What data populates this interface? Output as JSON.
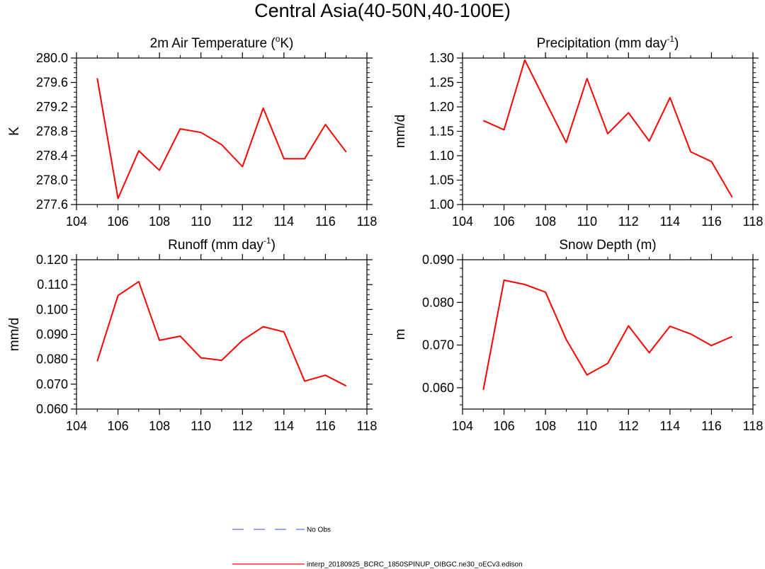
{
  "figure": {
    "title": "Central Asia(40-50N,40-100E)"
  },
  "chart_data": [
    {
      "type": "line",
      "title": "2m Air Temperature (",
      "title_sup": "o",
      "title_tail": "K)",
      "ylabel": "K",
      "xlim": [
        104,
        118
      ],
      "ylim": [
        277.6,
        280.0
      ],
      "xticks": [
        104,
        106,
        108,
        110,
        112,
        114,
        116,
        118
      ],
      "xtick_labels": [
        "104",
        "106",
        "108",
        "110",
        "112",
        "114",
        "116",
        "118"
      ],
      "yticks": [
        277.6,
        278.0,
        278.4,
        278.8,
        279.2,
        279.6,
        280.0
      ],
      "ytick_labels": [
        "277.6",
        "278.0",
        "278.4",
        "278.8",
        "279.2",
        "279.6",
        "280.0"
      ],
      "series": [
        {
          "name": "interp_20180925_BCRC_1850SPINUP_OIBGC.ne30_oECv3.edison",
          "color": "#ff0000",
          "x": [
            105,
            106,
            107,
            108,
            109,
            110,
            111,
            112,
            113,
            114,
            115,
            116,
            117
          ],
          "y": [
            279.67,
            277.7,
            278.48,
            278.16,
            278.84,
            278.78,
            278.58,
            278.22,
            279.18,
            278.35,
            278.35,
            278.91,
            278.46
          ]
        }
      ]
    },
    {
      "type": "line",
      "title": "Precipitation (mm day",
      "title_sup": "-1",
      "title_tail": ")",
      "ylabel": "mm/d",
      "xlim": [
        104,
        118
      ],
      "ylim": [
        1.0,
        1.3
      ],
      "xticks": [
        104,
        106,
        108,
        110,
        112,
        114,
        116,
        118
      ],
      "xtick_labels": [
        "104",
        "106",
        "108",
        "110",
        "112",
        "114",
        "116",
        "118"
      ],
      "yticks": [
        1.0,
        1.05,
        1.1,
        1.15,
        1.2,
        1.25,
        1.3
      ],
      "ytick_labels": [
        "1.00",
        "1.05",
        "1.10",
        "1.15",
        "1.20",
        "1.25",
        "1.30"
      ],
      "series": [
        {
          "name": "interp_20180925_BCRC_1850SPINUP_OIBGC.ne30_oECv3.edison",
          "color": "#ff0000",
          "x": [
            105,
            106,
            107,
            108,
            109,
            110,
            111,
            112,
            113,
            114,
            115,
            116,
            117
          ],
          "y": [
            1.172,
            1.153,
            1.296,
            1.211,
            1.127,
            1.258,
            1.145,
            1.188,
            1.13,
            1.219,
            1.108,
            1.088,
            1.015
          ]
        }
      ]
    },
    {
      "type": "line",
      "title": "Runoff (mm day",
      "title_sup": "-1",
      "title_tail": ")",
      "ylabel": "mm/d",
      "xlim": [
        104,
        118
      ],
      "ylim": [
        0.06,
        0.12
      ],
      "xticks": [
        104,
        106,
        108,
        110,
        112,
        114,
        116,
        118
      ],
      "xtick_labels": [
        "104",
        "106",
        "108",
        "110",
        "112",
        "114",
        "116",
        "118"
      ],
      "yticks": [
        0.06,
        0.07,
        0.08,
        0.09,
        0.1,
        0.11,
        0.12
      ],
      "ytick_labels": [
        "0.060",
        "0.070",
        "0.080",
        "0.090",
        "0.100",
        "0.110",
        "0.120"
      ],
      "series": [
        {
          "name": "interp_20180925_BCRC_1850SPINUP_OIBGC.ne30_oECv3.edison",
          "color": "#ff0000",
          "x": [
            105,
            106,
            107,
            108,
            109,
            110,
            111,
            112,
            113,
            114,
            115,
            116,
            117
          ],
          "y": [
            0.0792,
            0.1056,
            0.1112,
            0.0876,
            0.0893,
            0.0806,
            0.0796,
            0.0876,
            0.0931,
            0.091,
            0.0712,
            0.0736,
            0.0693
          ]
        }
      ]
    },
    {
      "type": "line",
      "title": "Snow Depth (m)",
      "title_sup": "",
      "title_tail": "",
      "ylabel": "m",
      "xlim": [
        104,
        118
      ],
      "ylim": [
        0.055,
        0.09
      ],
      "xticks": [
        104,
        106,
        108,
        110,
        112,
        114,
        116,
        118
      ],
      "xtick_labels": [
        "104",
        "106",
        "108",
        "110",
        "112",
        "114",
        "116",
        "118"
      ],
      "yticks": [
        0.06,
        0.07,
        0.08,
        0.09
      ],
      "ytick_labels": [
        "0.060",
        "0.070",
        "0.080",
        "0.090"
      ],
      "series": [
        {
          "name": "interp_20180925_BCRC_1850SPINUP_OIBGC.ne30_oECv3.edison",
          "color": "#ff0000",
          "x": [
            105,
            106,
            107,
            108,
            109,
            110,
            111,
            112,
            113,
            114,
            115,
            116,
            117
          ],
          "y": [
            0.0595,
            0.0852,
            0.0842,
            0.0824,
            0.0713,
            0.063,
            0.0657,
            0.0745,
            0.0682,
            0.0744,
            0.0726,
            0.0699,
            0.072
          ]
        }
      ]
    }
  ],
  "legend": {
    "items": [
      {
        "label": "No Obs",
        "color": "#5a6bff",
        "style": "dashed"
      },
      {
        "label": "interp_20180925_BCRC_1850SPINUP_OIBGC.ne30_oECv3.edison",
        "color": "#ff0000",
        "style": "solid"
      }
    ]
  }
}
